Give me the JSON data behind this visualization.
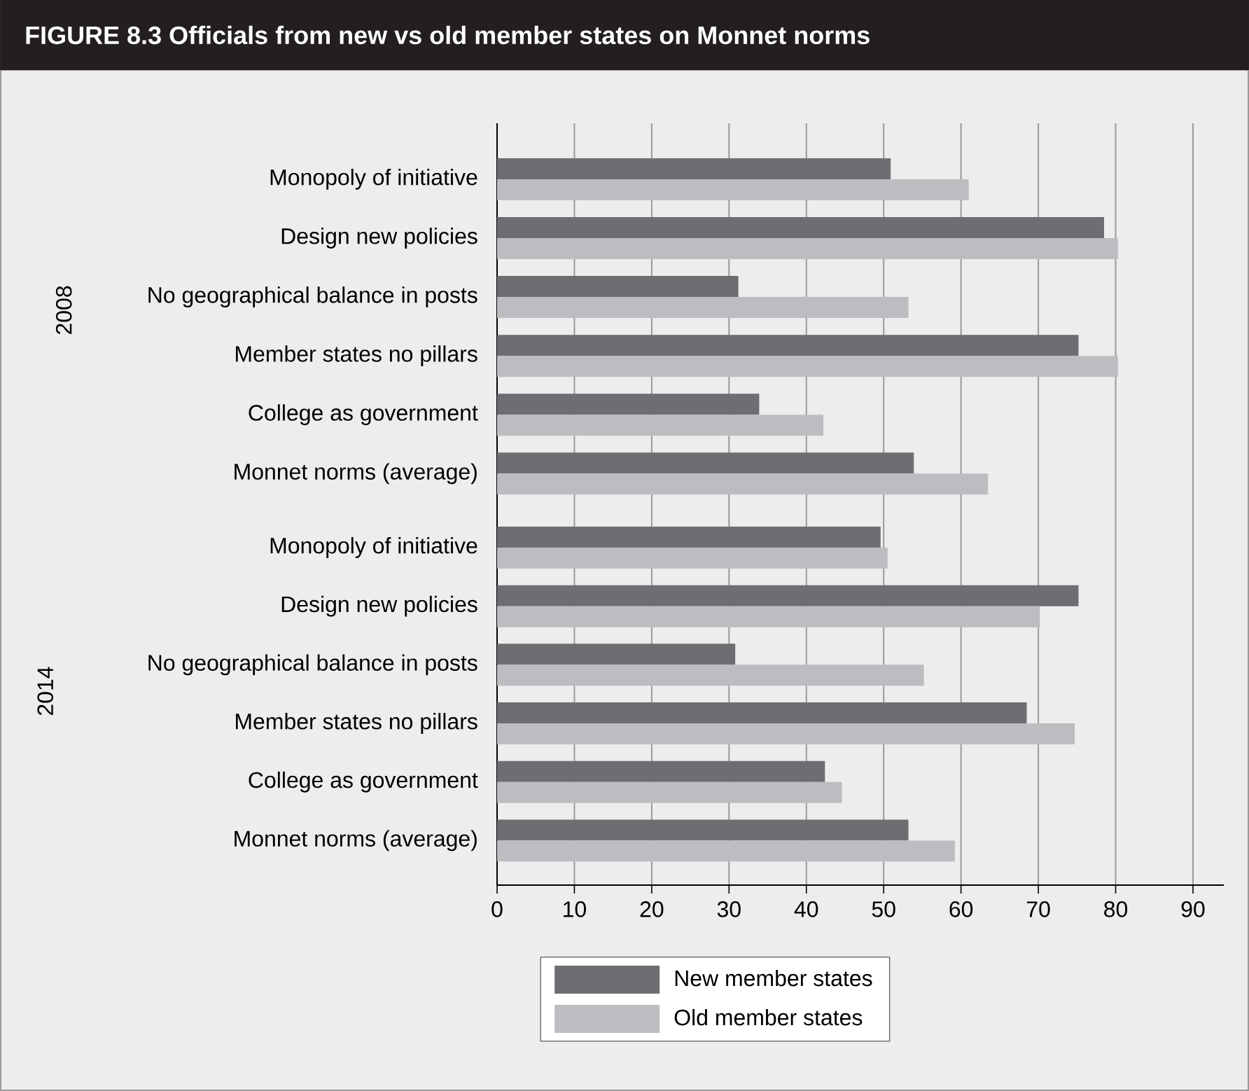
{
  "chart_data": [
    {
      "type": "bar",
      "orientation": "horizontal",
      "title": "FIGURE 8.3 Officials from new vs old member states on Monnet norms",
      "ylabel": "2008",
      "categories": [
        "Monopoly of initiative",
        "Design new policies",
        "No geographical balance in posts",
        "Member states no pillars",
        "College as government",
        "Monnet norms (average)"
      ],
      "series": [
        {
          "color": "#6d6e71",
          "values": [
            50.9,
            78.5,
            31.2,
            75.2,
            33.9,
            53.9
          ]
        },
        {
          "color": "#bcbdc0",
          "values": [
            61.0,
            80.3,
            53.2,
            80.3,
            42.2,
            63.5
          ]
        }
      ],
      "xlim": [
        0,
        90
      ],
      "xticks": [
        0,
        10,
        20,
        30,
        40,
        50,
        60,
        70,
        80,
        90
      ],
      "grid": "x",
      "tick_labels": "y"
    },
    {
      "type": "bar",
      "orientation": "horizontal",
      "ylabel": "2014",
      "categories": [
        "Monopoly of initiative",
        "Design new policies",
        "No geographical balance in posts",
        "Member states no pillars",
        "College as government",
        "Monnet norms (average)"
      ],
      "series": [
        {
          "name": "New member states",
          "color": "#6d6e71",
          "values": [
            49.6,
            75.2,
            30.8,
            68.5,
            42.4,
            53.2
          ]
        },
        {
          "name": "Old member states",
          "color": "#bcbdc0",
          "values": [
            50.5,
            70.2,
            55.2,
            74.7,
            44.6,
            59.2
          ]
        }
      ],
      "xlim": [
        0,
        94
      ],
      "xticks": [
        0,
        10,
        20,
        30,
        40,
        50,
        60,
        70,
        80,
        90
      ],
      "grid": "x",
      "legend": "bottom"
    }
  ]
}
